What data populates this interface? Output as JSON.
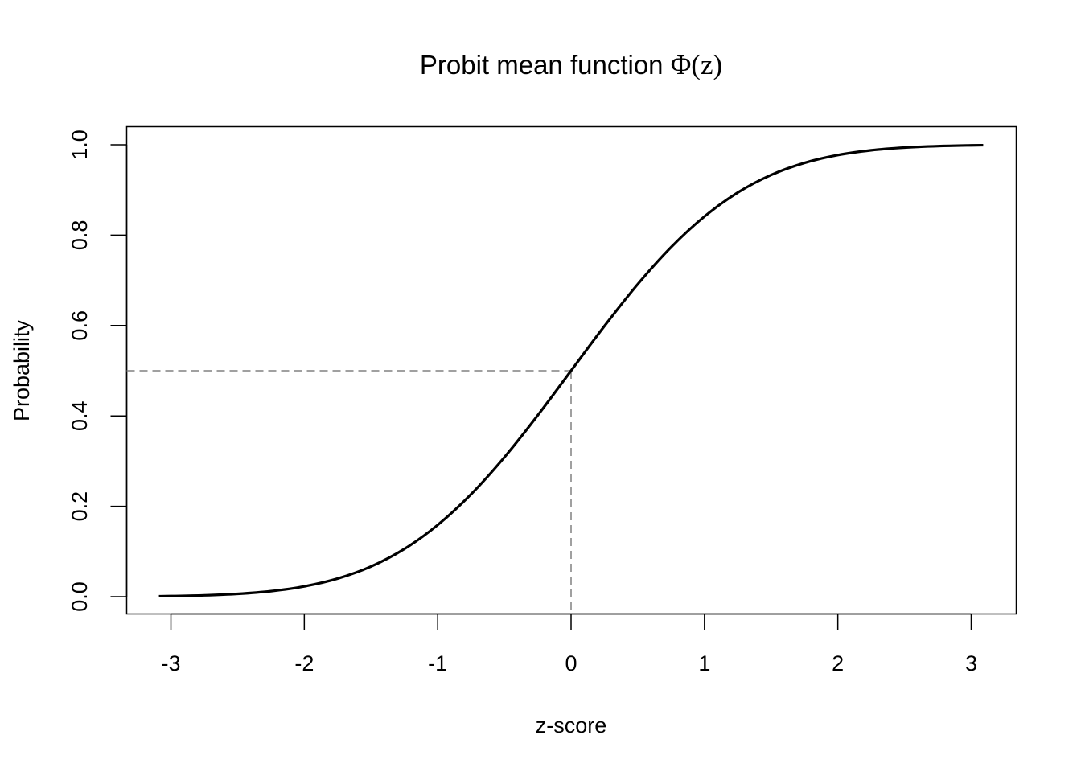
{
  "chart_data": {
    "type": "line",
    "title": "Probit mean function ",
    "title_math": "Φ(z)",
    "xlabel": "z-score",
    "ylabel": "Probability",
    "xlim": [
      -3.3,
      3.33
    ],
    "ylim": [
      -0.04,
      1.04
    ],
    "xticks": [
      -3,
      -2,
      -1,
      0,
      1,
      2,
      3
    ],
    "xtick_labels": [
      "-3",
      "-2",
      "-1",
      "0",
      "1",
      "2",
      "3"
    ],
    "yticks": [
      0,
      0.2,
      0.4,
      0.6,
      0.8,
      1.0
    ],
    "ytick_labels": [
      "0.0",
      "0.2",
      "0.4",
      "0.6",
      "0.8",
      "1.0"
    ],
    "grid": false,
    "series": [
      {
        "color": "#000000",
        "x": [
          -3.09,
          -3,
          -2.75,
          -2.5,
          -2.25,
          -2,
          -1.75,
          -1.5,
          -1.25,
          -1,
          -0.75,
          -0.5,
          -0.25,
          0,
          0.25,
          0.5,
          0.75,
          1,
          1.25,
          1.5,
          1.75,
          2,
          2.25,
          2.5,
          2.75,
          3,
          3.09
        ],
        "y": [
          0.001,
          0.0013,
          0.003,
          0.0062,
          0.0122,
          0.0228,
          0.0401,
          0.0668,
          0.1056,
          0.1587,
          0.2266,
          0.3085,
          0.4013,
          0.5,
          0.5987,
          0.6915,
          0.7734,
          0.8413,
          0.8944,
          0.9332,
          0.9599,
          0.9772,
          0.9878,
          0.9938,
          0.997,
          0.9987,
          0.999
        ]
      }
    ],
    "reference_lines": {
      "color": "#808080",
      "style": "dashed",
      "horizontal_y": 0.5,
      "vertical_x": 0
    }
  }
}
